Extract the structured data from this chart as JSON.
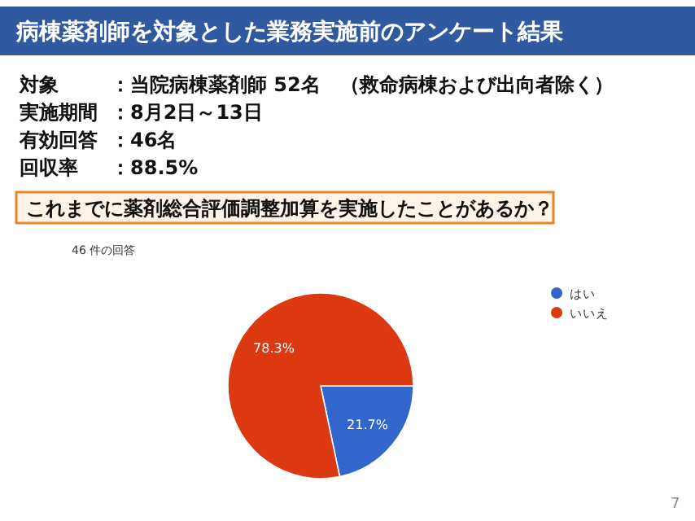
{
  "chart_data": {
    "type": "pie",
    "title": "病棟薬剤師を対象とした業務実施前のアンケート結果",
    "subtitle": "46 件の回答",
    "categories": [
      "はい",
      "いいえ"
    ],
    "values": [
      21.7,
      78.3
    ],
    "colors": [
      "#3366cc",
      "#dc3912"
    ],
    "value_labels": [
      "21.7%",
      "78.3%"
    ],
    "legend": "top right",
    "annotations": [
      "対象",
      "：当院病棟薬剤師 52名　（救命病棟および出向者除く）",
      "実施期間",
      "：8月2日～13日",
      "有効回答",
      "：46名",
      "回収率",
      "：88.5%",
      "これまでに薬剤総合評価調整加算を実施したことがあるか？",
      "7"
    ]
  }
}
